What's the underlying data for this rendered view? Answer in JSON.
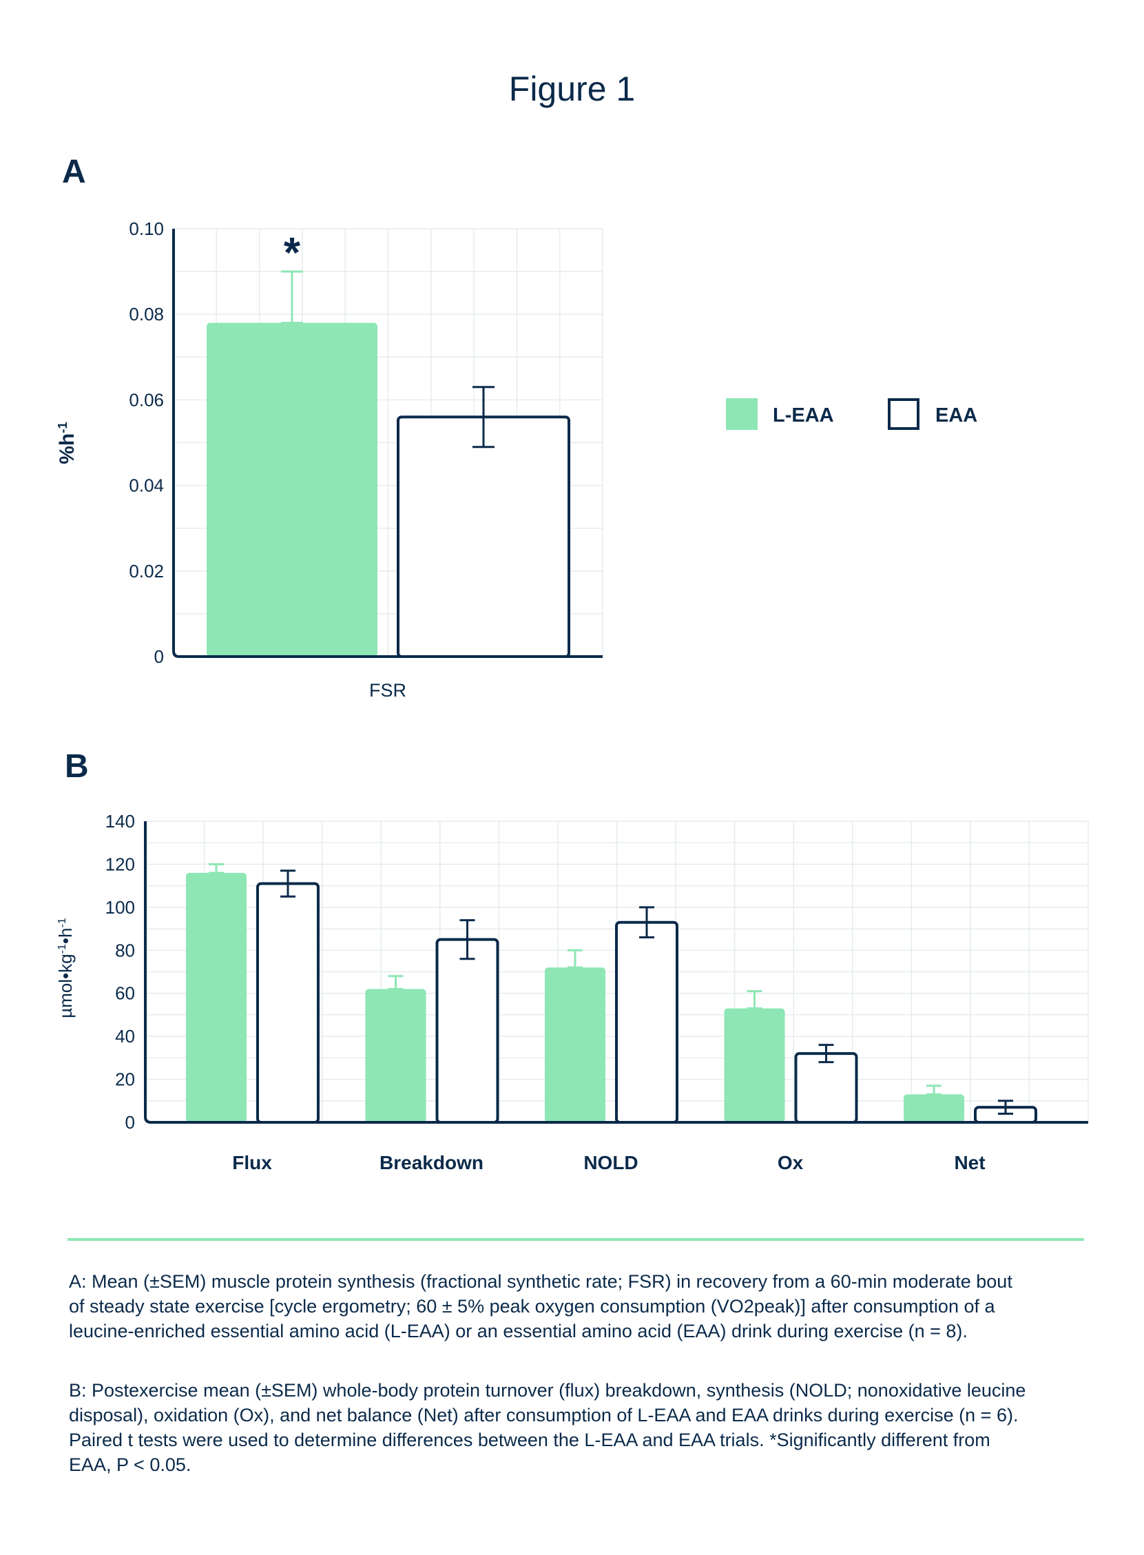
{
  "figure": {
    "title": "Figure 1",
    "panel_a_letter": "A",
    "panel_b_letter": "B"
  },
  "colors": {
    "leaa": "#8ee6b4",
    "eaa_stroke": "#0b2a4a",
    "grid": "#e6ecee",
    "text": "#0b2a4a"
  },
  "chart_data": [
    {
      "type": "bar",
      "panel": "A",
      "categories": [
        "FSR"
      ],
      "ylabel": "%h-1",
      "ylim": [
        0,
        0.1
      ],
      "yticks": [
        0,
        0.02,
        0.04,
        0.06,
        0.08,
        0.1
      ],
      "ytick_labels": [
        "0",
        "0.02",
        "0.04",
        "0.06",
        "0.08",
        "0.10"
      ],
      "series": [
        {
          "name": "L-EAA",
          "values": [
            0.078
          ],
          "err": [
            0.012
          ]
        },
        {
          "name": "EAA",
          "values": [
            0.056
          ],
          "err": [
            0.007
          ]
        }
      ],
      "annotations": [
        {
          "text": "*",
          "series": "L-EAA",
          "category": "FSR"
        }
      ],
      "legend": {
        "position": "right",
        "entries": [
          "L-EAA",
          "EAA"
        ]
      },
      "grid": true
    },
    {
      "type": "bar",
      "panel": "B",
      "categories": [
        "Flux",
        "Breakdown",
        "NOLD",
        "Ox",
        "Net"
      ],
      "ylabel": "µmol•kg-1•h-1",
      "ylim": [
        0,
        140
      ],
      "yticks": [
        0,
        20,
        40,
        60,
        80,
        100,
        120,
        140
      ],
      "ytick_labels": [
        "0",
        "20",
        "40",
        "60",
        "80",
        "100",
        "120",
        "140"
      ],
      "series": [
        {
          "name": "L-EAA",
          "values": [
            116,
            62,
            72,
            53,
            13
          ],
          "err": [
            4,
            6,
            8,
            8,
            4
          ]
        },
        {
          "name": "EAA",
          "values": [
            111,
            85,
            93,
            32,
            7
          ],
          "err": [
            6,
            9,
            7,
            4,
            3
          ]
        }
      ],
      "grid": true
    }
  ],
  "captions": {
    "a": [
      "A: Mean (±SEM) muscle protein synthesis (fractional synthetic rate; FSR) in recovery from a 60-min moderate bout",
      "of steady state exercise [cycle ergometry; 60 ± 5% peak oxygen consumption (VO2peak)] after consumption of a",
      "leucine-enriched essential amino acid (L-EAA) or an essential amino acid (EAA) drink during exercise (n = 8)."
    ],
    "b": [
      "B: Postexercise mean (±SEM) whole-body protein turnover (flux) breakdown, synthesis (NOLD; nonoxidative leucine",
      "disposal), oxidation (Ox), and net balance (Net) after consumption of L-EAA and EAA drinks during exercise (n = 6).",
      "Paired t tests were used to determine differences between the L-EAA and EAA trials. *Significantly different from",
      "EAA, P < 0.05."
    ]
  }
}
